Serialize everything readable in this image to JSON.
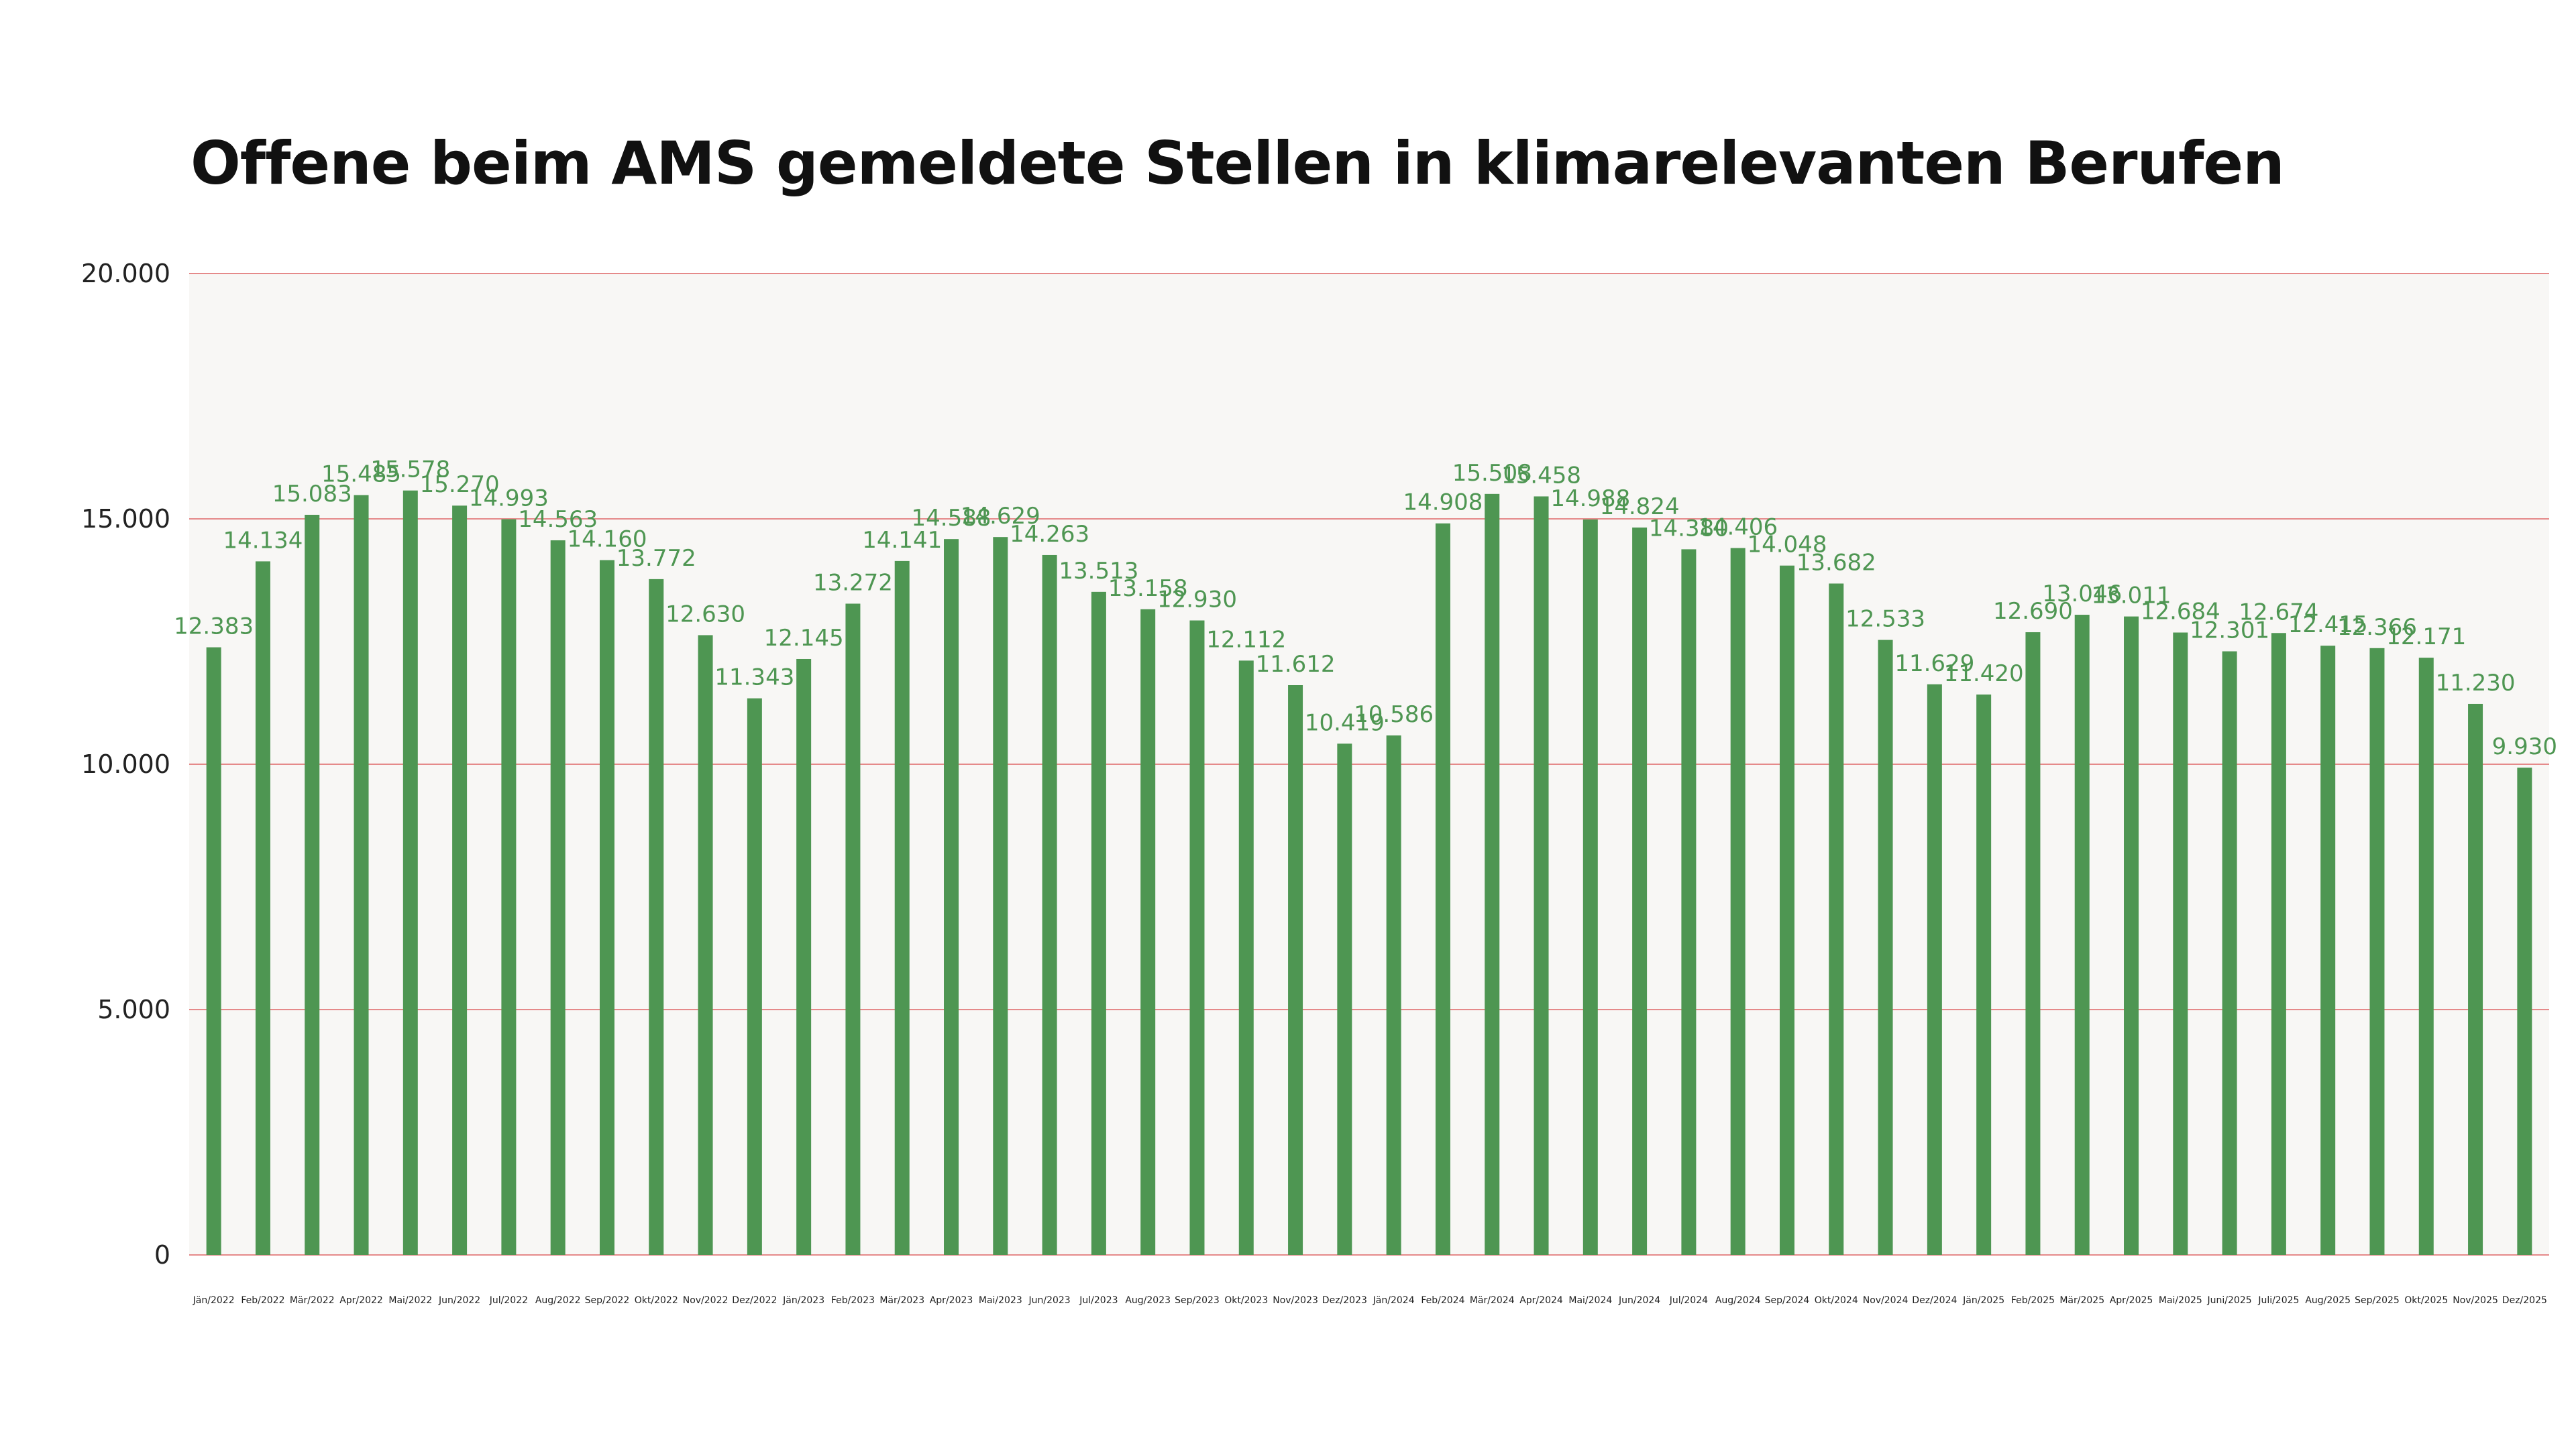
{
  "chart_data": {
    "type": "bar",
    "title": "Offene beim AMS gemeldete Stellen in klimarelevanten Berufen",
    "xlabel": "",
    "ylabel": "",
    "ylim": [
      0,
      20000
    ],
    "yticks": [
      0,
      5000,
      10000,
      15000,
      20000
    ],
    "ytick_labels": [
      "0",
      "5.000",
      "10.000",
      "15.000",
      "20.000"
    ],
    "grid": true,
    "legend": "none",
    "colors": {
      "bar": "#4e9652",
      "label": "#4e9652",
      "grid": "#e58a8a",
      "plot_bg": "#f8f7f5"
    },
    "categories": [
      "Jän/2022",
      "Feb/2022",
      "Mär/2022",
      "Apr/2022",
      "Mai/2022",
      "Jun/2022",
      "Jul/2022",
      "Aug/2022",
      "Sep/2022",
      "Okt/2022",
      "Nov/2022",
      "Dez/2022",
      "Jän/2023",
      "Feb/2023",
      "Mär/2023",
      "Apr/2023",
      "Mai/2023",
      "Jun/2023",
      "Jul/2023",
      "Aug/2023",
      "Sep/2023",
      "Okt/2023",
      "Nov/2023",
      "Dez/2023",
      "Jän/2024",
      "Feb/2024",
      "Mär/2024",
      "Apr/2024",
      "Mai/2024",
      "Jun/2024",
      "Jul/2024",
      "Aug/2024",
      "Sep/2024",
      "Okt/2024",
      "Nov/2024",
      "Dez/2024",
      "Jän/2025",
      "Feb/2025",
      "Mär/2025",
      "Apr/2025",
      "Mai/2025",
      "Juni/2025",
      "Juli/2025",
      "Aug/2025",
      "Sep/2025",
      "Okt/2025",
      "Nov/2025",
      "Dez/2025"
    ],
    "values": [
      12383,
      14134,
      15083,
      15485,
      15578,
      15270,
      14993,
      14563,
      14160,
      13772,
      12630,
      11343,
      12145,
      13272,
      14141,
      14588,
      14629,
      14263,
      13513,
      13158,
      12930,
      12112,
      11612,
      10419,
      10586,
      14908,
      15508,
      15458,
      14988,
      14824,
      14380,
      14406,
      14048,
      13682,
      12533,
      11629,
      11420,
      12690,
      13046,
      13011,
      12684,
      12301,
      12674,
      12415,
      12366,
      12171,
      11230,
      9930
    ],
    "value_labels": [
      "12.383",
      "14.134",
      "15.083",
      "15.485",
      "15.578",
      "15.270",
      "14.993",
      "14.563",
      "14.160",
      "13.772",
      "12.630",
      "11.343",
      "12.145",
      "13.272",
      "14.141",
      "14.588",
      "14.629",
      "14.263",
      "13.513",
      "13.158",
      "12.930",
      "12.112",
      "11.612",
      "10.419",
      "10.586",
      "14.908",
      "15.508",
      "15.458",
      "14.988",
      "14.824",
      "14.380",
      "14.406",
      "14.048",
      "13.682",
      "12.533",
      "11.629",
      "11.420",
      "12.690",
      "13.046",
      "13.011",
      "12.684",
      "12.301",
      "12.674",
      "12.415",
      "12.366",
      "12.171",
      "11.230",
      "9.930"
    ]
  }
}
